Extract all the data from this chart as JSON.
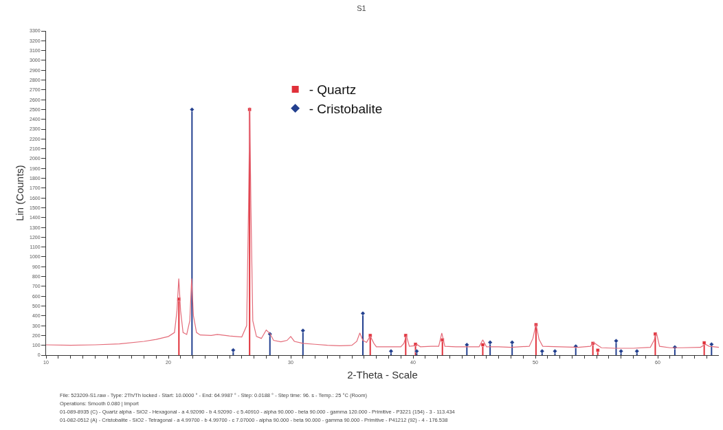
{
  "chart_data": {
    "type": "line",
    "title": "S1",
    "xlabel": "2-Theta - Scale",
    "ylabel": "Lin (Counts)",
    "xlim": [
      10,
      65
    ],
    "ylim": [
      0,
      3300
    ],
    "xticks": [
      10,
      {
        "value": 11,
        "label": null
      },
      {
        "value": 12,
        "label": null
      },
      {
        "value": 13,
        "label": null
      },
      {
        "value": 14,
        "label": null
      },
      {
        "value": 15,
        "label": null
      },
      {
        "value": 16,
        "label": null
      },
      {
        "value": 17,
        "label": null
      },
      {
        "value": 18,
        "label": null
      },
      {
        "value": 19,
        "label": null
      },
      20,
      {
        "value": 21,
        "label": null
      },
      {
        "value": 22,
        "label": null
      },
      {
        "value": 23,
        "label": null
      },
      {
        "value": 24,
        "label": null
      },
      {
        "value": 25,
        "label": null
      },
      {
        "value": 26,
        "label": null
      },
      {
        "value": 27,
        "label": null
      },
      {
        "value": 28,
        "label": null
      },
      {
        "value": 29,
        "label": null
      },
      30,
      {
        "value": 31,
        "label": null
      },
      {
        "value": 32,
        "label": null
      },
      {
        "value": 33,
        "label": null
      },
      {
        "value": 34,
        "label": null
      },
      {
        "value": 35,
        "label": null
      },
      {
        "value": 36,
        "label": null
      },
      {
        "value": 37,
        "label": null
      },
      {
        "value": 38,
        "label": null
      },
      {
        "value": 39,
        "label": null
      },
      40,
      {
        "value": 41,
        "label": null
      },
      {
        "value": 42,
        "label": null
      },
      {
        "value": 43,
        "label": null
      },
      {
        "value": 44,
        "label": null
      },
      {
        "value": 45,
        "label": null
      },
      {
        "value": 46,
        "label": null
      },
      {
        "value": 47,
        "label": null
      },
      {
        "value": 48,
        "label": null
      },
      {
        "value": 49,
        "label": null
      },
      50,
      {
        "value": 51,
        "label": null
      },
      {
        "value": 52,
        "label": null
      },
      {
        "value": 53,
        "label": null
      },
      {
        "value": 54,
        "label": null
      },
      {
        "value": 55,
        "label": null
      },
      {
        "value": 56,
        "label": null
      },
      {
        "value": 57,
        "label": null
      },
      {
        "value": 58,
        "label": null
      },
      {
        "value": 59,
        "label": null
      },
      60,
      {
        "value": 61,
        "label": null
      },
      {
        "value": 62,
        "label": null
      },
      {
        "value": 63,
        "label": null
      },
      {
        "value": 64,
        "label": null
      }
    ],
    "yticks": [
      0,
      100,
      200,
      300,
      400,
      500,
      600,
      700,
      800,
      900,
      1000,
      1100,
      1200,
      1300,
      1400,
      1500,
      1600,
      1700,
      1800,
      1900,
      2000,
      2100,
      2200,
      2300,
      2400,
      2500,
      2600,
      2700,
      2800,
      2900,
      3000,
      3100,
      3200,
      3300
    ],
    "legend": "top",
    "series": [
      {
        "color": "#e46a78",
        "line_style": "solid",
        "marker": "none",
        "x": [
          10,
          12,
          14,
          16,
          18,
          19,
          20,
          20.5,
          20.7,
          20.85,
          21.0,
          21.2,
          21.5,
          21.75,
          21.9,
          22.05,
          22.3,
          22.6,
          23.5,
          24,
          25,
          26,
          26.4,
          26.55,
          26.65,
          26.75,
          26.9,
          27.2,
          27.6,
          28.0,
          28.3,
          28.6,
          29.2,
          29.7,
          30.0,
          30.3,
          31,
          32,
          33,
          34,
          35.0,
          35.4,
          35.65,
          35.9,
          36.2,
          36.5,
          36.8,
          37.0,
          38,
          39.0,
          39.25,
          39.45,
          39.7,
          40.1,
          40.3,
          40.6,
          41.5,
          42.1,
          42.35,
          42.6,
          43.5,
          45.4,
          45.7,
          46.0,
          47,
          48,
          49.5,
          49.8,
          50.05,
          50.3,
          50.6,
          52,
          53.5,
          54.5,
          54.75,
          55.1,
          55.4,
          56.5,
          58,
          59.4,
          59.7,
          59.9,
          60.15,
          61,
          62,
          63.5,
          63.9,
          64.2,
          65
        ],
        "values": [
          105,
          100,
          105,
          115,
          140,
          160,
          190,
          230,
          450,
          780,
          450,
          230,
          210,
          350,
          780,
          400,
          230,
          205,
          200,
          210,
          195,
          185,
          300,
          1500,
          2520,
          1500,
          350,
          190,
          170,
          255,
          220,
          150,
          135,
          150,
          190,
          140,
          120,
          110,
          100,
          95,
          100,
          140,
          225,
          150,
          130,
          195,
          120,
          85,
          85,
          85,
          120,
          200,
          90,
          95,
          110,
          85,
          90,
          90,
          225,
          90,
          85,
          85,
          155,
          85,
          85,
          80,
          90,
          170,
          315,
          160,
          90,
          85,
          80,
          90,
          130,
          100,
          75,
          70,
          70,
          80,
          150,
          225,
          90,
          75,
          75,
          80,
          110,
          90,
          80
        ]
      },
      {
        "type": "lollipop",
        "name": "- Quartz",
        "color": "#e0303a",
        "marker": "square",
        "x": [
          20.86,
          26.64,
          36.5,
          39.4,
          40.2,
          42.4,
          45.7,
          50.05,
          54.7,
          55.1,
          59.8,
          63.8
        ],
        "values": [
          570,
          2500,
          200,
          200,
          110,
          155,
          105,
          310,
          120,
          50,
          215,
          125
        ]
      },
      {
        "type": "lollipop",
        "name": "- Cristobalite",
        "color": "#23408f",
        "marker": "diamond",
        "x": [
          21.93,
          25.3,
          28.3,
          31.0,
          35.9,
          38.2,
          40.3,
          44.4,
          46.3,
          48.1,
          50.55,
          51.6,
          53.3,
          56.6,
          57.0,
          58.3,
          61.4,
          64.4
        ],
        "values": [
          2500,
          50,
          215,
          250,
          425,
          40,
          40,
          105,
          130,
          130,
          40,
          40,
          90,
          145,
          40,
          40,
          80,
          110
        ]
      }
    ],
    "annotations": [
      "File: 523209-S1.raw - Type: 2Th/Th locked - Start: 10.0000 ° - End: 64.9987 ° - Step: 0.0188 ° - Step time: 96. s - Temp.: 25 °C (Room)",
      "Operations: Smooth 0.080 | Import",
      "01-089-8935 (C) - Quartz alpha - SiO2 - Hexagonal - a 4.92090 - b 4.92090 - c 5.40910 - alpha 90.000 - beta 90.000 - gamma 120.000 - Primitive - P3221 (154) - 3 - 113.434",
      "01-082-0512 (A) - Cristobalite - SiO2 - Tetragonal - a 4.99700 - b 4.99700 - c 7.07000 - alpha 90.000 - beta 90.000 - gamma 90.000 - Primitive - P41212 (92) - 4 - 176.538"
    ]
  }
}
